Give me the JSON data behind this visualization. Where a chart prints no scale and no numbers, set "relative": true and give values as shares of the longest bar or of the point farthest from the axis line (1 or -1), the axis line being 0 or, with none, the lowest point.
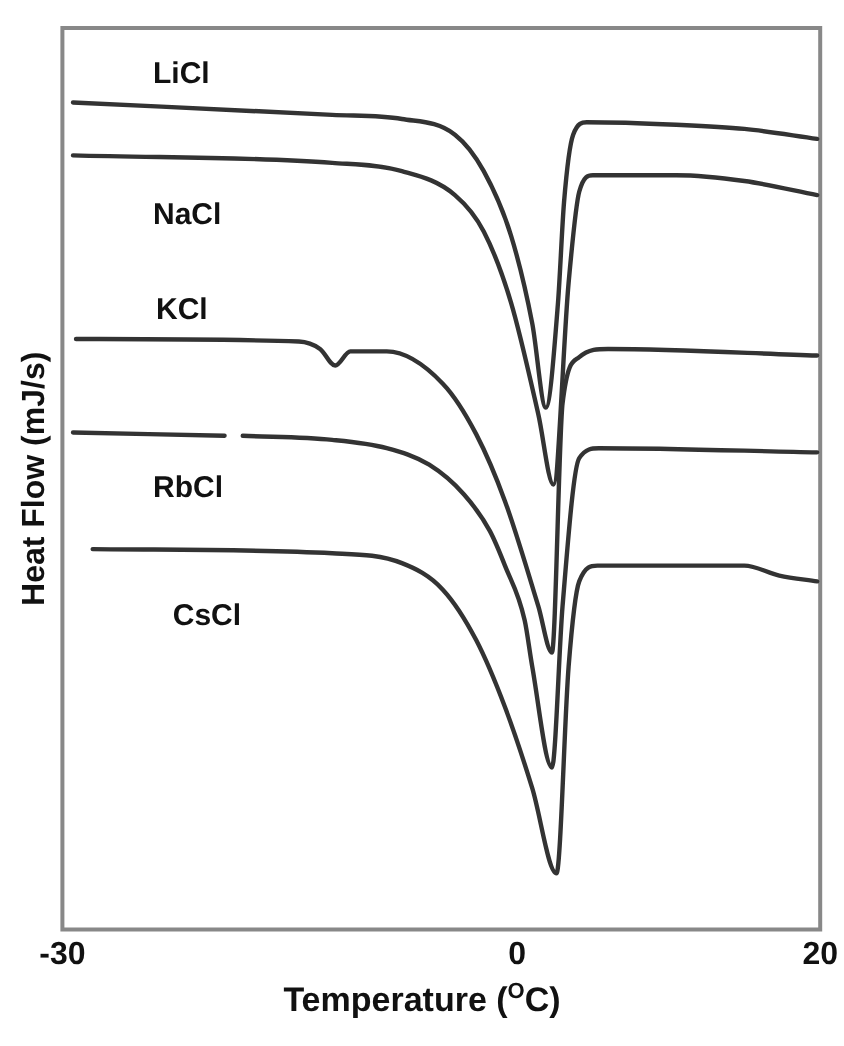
{
  "chart_data": {
    "type": "line",
    "relative": true,
    "xlabel": "Temperature ($^{O}$C)",
    "ylabel": "Heat Flow (mJ/s)",
    "xlim": [
      -30,
      20
    ],
    "xticks": [
      -30,
      0,
      20
    ],
    "grid": false,
    "legend": false,
    "marker": "none",
    "line_style": "solid",
    "series": [
      {
        "name": "LiCl",
        "color": "#333333",
        "x": [
          -29.3,
          -12.2,
          -7.6,
          -4.1,
          -2.2,
          -0.4,
          1.0,
          1.9,
          2.7,
          3.1,
          3.7,
          4.6,
          10.5,
          15,
          19.8
        ],
        "values": [
          1.0,
          0.985,
          0.98,
          0.961,
          0.917,
          0.839,
          0.733,
          0.631,
          0.758,
          0.88,
          0.961,
          0.976,
          0.973,
          0.968,
          0.956
        ]
      },
      {
        "name": "NaCl",
        "color": "#333333",
        "x": [
          -29.3,
          -12.2,
          -7.6,
          -4.1,
          -2.2,
          -0.4,
          1.4,
          2.4,
          3.4,
          4.1,
          5,
          10.5,
          15,
          19.8
        ],
        "values": [
          0.936,
          0.927,
          0.917,
          0.888,
          0.844,
          0.758,
          0.623,
          0.538,
          0.782,
          0.892,
          0.912,
          0.912,
          0.905,
          0.888
        ]
      },
      {
        "name": "KCl",
        "color": "#333333",
        "x": [
          -29.1,
          -14.4,
          -13,
          -12,
          -11,
          -8.6,
          -4.9,
          -2.7,
          -0.8,
          1.4,
          2.3,
          3.0,
          4.1,
          6.0,
          19.8
        ],
        "values": [
          0.714,
          0.711,
          0.702,
          0.682,
          0.699,
          0.699,
          0.66,
          0.599,
          0.518,
          0.391,
          0.335,
          0.636,
          0.692,
          0.702,
          0.694
        ]
      },
      {
        "name": "RbCl",
        "color": "#333333",
        "x": [
          -29.3,
          -19.3,
          -18.7,
          -18.1,
          -12.2,
          -8.6,
          -5.8,
          -3.5,
          -1.8,
          -0.8,
          0.5,
          1.0,
          2.3,
          3.0,
          4.1,
          5.4,
          19.8
        ],
        "values": [
          0.601,
          0.597,
          null,
          0.597,
          0.592,
          0.582,
          0.562,
          0.526,
          0.482,
          0.44,
          0.374,
          0.318,
          0.196,
          0.391,
          0.57,
          0.582,
          0.577
        ]
      },
      {
        "name": "CsCl",
        "color": "#333333",
        "x": [
          -28,
          -12.2,
          -7.6,
          -4.9,
          -2.7,
          -0.8,
          1.0,
          2.6,
          3.4,
          4.1,
          5.3,
          15,
          17.3,
          19.8
        ],
        "values": [
          0.46,
          0.455,
          0.443,
          0.411,
          0.35,
          0.269,
          0.171,
          0.068,
          0.318,
          0.421,
          0.44,
          0.44,
          0.428,
          0.421
        ]
      }
    ]
  }
}
